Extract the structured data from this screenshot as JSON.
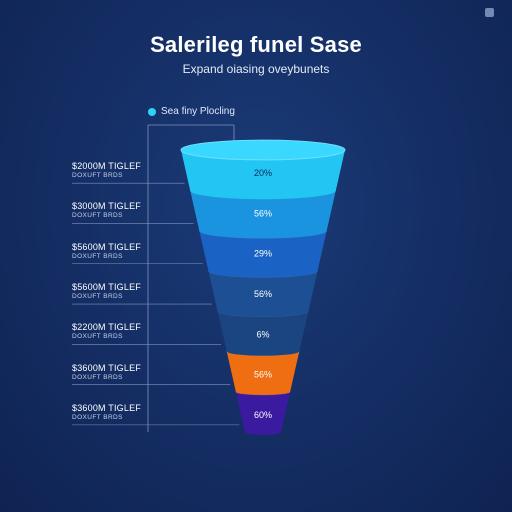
{
  "title": "Salerileg funel Sase",
  "subtitle": "Expand oiasing oveybunets",
  "legend": {
    "label": "Sea finy Plocling",
    "color": "#2fd3f5"
  },
  "rows": [
    {
      "amount": "$2000M TIGLEF",
      "sub": "DOXUFT BRDS"
    },
    {
      "amount": "$3000M TIGLEF",
      "sub": "DOXUFT BRDS"
    },
    {
      "amount": "$5600M TIGLEF",
      "sub": "DOXUFT BRDS"
    },
    {
      "amount": "$5600M TIGLEF",
      "sub": "DOXUFT BRDS"
    },
    {
      "amount": "$2200M TIGLEF",
      "sub": "DOXUFT BRDS"
    },
    {
      "amount": "$3600M TIGLEF",
      "sub": "DOXUFT BRDS"
    },
    {
      "amount": "$3600M TIGLEF",
      "sub": "DOXUFT BRDS"
    }
  ],
  "chart_data": {
    "type": "funnel",
    "title": "Salerileg funel Sase",
    "subtitle": "Expand oiasing oveybunets",
    "stages": [
      {
        "label": "20%",
        "color": "#22c6f2"
      },
      {
        "label": "56%",
        "color": "#1b94e0"
      },
      {
        "label": "29%",
        "color": "#1a63c4"
      },
      {
        "label": "56%",
        "color": "#1d4f94"
      },
      {
        "label": "6%",
        "color": "#1a4581"
      },
      {
        "label": "56%",
        "color": "#ef6e12"
      },
      {
        "label": "60%",
        "color": "#3a1a9e"
      }
    ]
  }
}
